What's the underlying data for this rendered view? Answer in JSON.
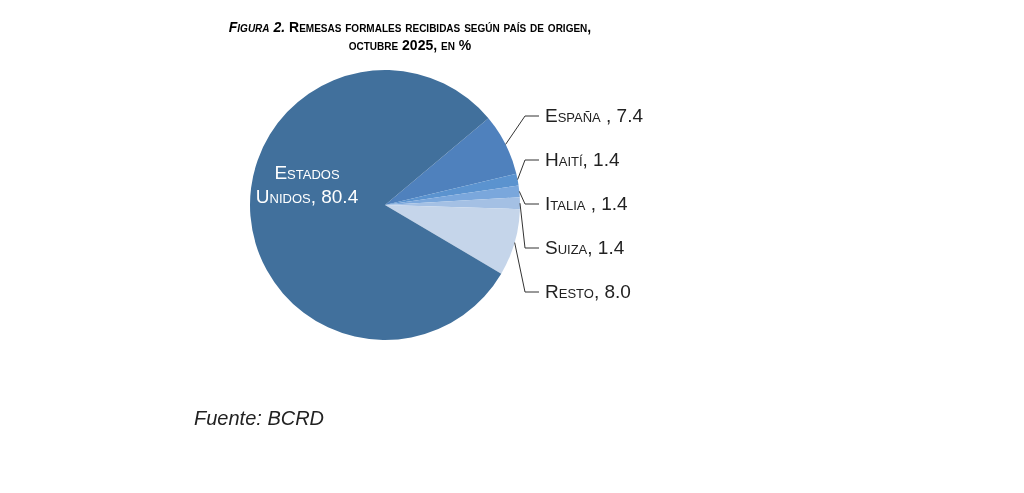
{
  "chart_data": {
    "type": "pie",
    "title": "Figura 2. Remesas formales recibidas según país de origen, octubre 2025, en %",
    "categories": [
      "España ",
      "Haití",
      "Italia ",
      "Suiza",
      "Resto",
      "Estados Unidos"
    ],
    "values": [
      7.4,
      1.4,
      1.4,
      1.4,
      8.0,
      80.4
    ],
    "value_labels": [
      "7.4",
      "1.4",
      "1.4",
      "1.4",
      "8.0",
      "80.4"
    ],
    "colors": [
      "#4f81bd",
      "#5b93cf",
      "#7aa7dc",
      "#a4c0e4",
      "#c5d5ea",
      "#41709c"
    ],
    "annotations": [
      "Fuente: BCRD"
    ]
  }
}
